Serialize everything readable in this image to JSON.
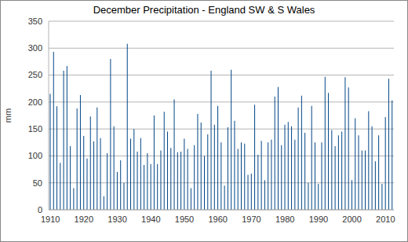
{
  "chart_data": {
    "type": "bar",
    "title": "December Precipitation - England SW & S Wales",
    "y_label": "mm",
    "categories": [
      "1910",
      null,
      null,
      null,
      null,
      null,
      null,
      null,
      null,
      null,
      "1920",
      null,
      null,
      null,
      null,
      null,
      null,
      null,
      null,
      null,
      "1930",
      null,
      null,
      null,
      null,
      null,
      null,
      null,
      null,
      null,
      "1940",
      null,
      null,
      null,
      null,
      null,
      null,
      null,
      null,
      null,
      "1950",
      null,
      null,
      null,
      null,
      null,
      null,
      null,
      null,
      null,
      "1960",
      null,
      null,
      null,
      null,
      null,
      null,
      null,
      null,
      null,
      "1970",
      null,
      null,
      null,
      null,
      null,
      null,
      null,
      null,
      null,
      "1980",
      null,
      null,
      null,
      null,
      null,
      null,
      null,
      null,
      null,
      "1990",
      null,
      null,
      null,
      null,
      null,
      null,
      null,
      null,
      null,
      "2000",
      null,
      null,
      null,
      null,
      null,
      null,
      null,
      null,
      null,
      "2010",
      null,
      null
    ],
    "values": [
      215,
      293,
      192,
      87,
      258,
      267,
      118,
      40,
      188,
      213,
      137,
      95,
      173,
      127,
      190,
      133,
      25,
      105,
      280,
      155,
      70,
      92,
      50,
      308,
      132,
      150,
      108,
      133,
      83,
      105,
      85,
      175,
      85,
      110,
      182,
      145,
      115,
      205,
      107,
      108,
      132,
      113,
      40,
      120,
      178,
      162,
      100,
      140,
      258,
      158,
      193,
      125,
      45,
      153,
      260,
      165,
      113,
      125,
      123,
      65,
      67,
      195,
      102,
      128,
      55,
      125,
      130,
      210,
      228,
      120,
      158,
      163,
      155,
      130,
      190,
      212,
      143,
      50,
      193,
      125,
      48,
      125,
      247,
      217,
      148,
      118,
      138,
      145,
      246,
      227,
      55,
      170,
      138,
      110,
      110,
      183,
      155,
      90,
      138,
      48,
      172,
      243,
      203
    ],
    "color": "#004586",
    "ylim": [
      0,
      350
    ],
    "yticks": [
      0,
      50,
      100,
      150,
      200,
      250,
      300,
      350
    ],
    "grid": true
  }
}
